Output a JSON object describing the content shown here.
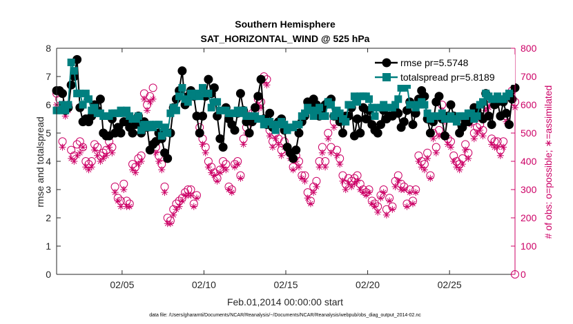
{
  "chart_data": {
    "type": "line",
    "title": "Southern Hemisphere",
    "subtitle": "SAT_HORIZONTAL_WIND @ 525 hPa",
    "xlabel": "Feb.01,2014 00:00:00 start",
    "ylabel_left": "rmse and totalspread",
    "ylabel_right": "# of obs: o=possible; ∗=assimilated",
    "footnote": "data file: /Users/gharamti/Documents/NCAR/Reanalysis/~/Documents/NCAR/Reanalysis/webpub/obs_diag_output_2014-02.nc",
    "xlim": [
      1,
      29
    ],
    "ylim_left": [
      0,
      8
    ],
    "ylim_right": [
      0,
      800
    ],
    "x_ticks": [
      5,
      10,
      15,
      20,
      25
    ],
    "x_tick_labels": [
      "02/05",
      "02/10",
      "02/15",
      "02/20",
      "02/25"
    ],
    "y_ticks_left": [
      0,
      1,
      2,
      3,
      4,
      5,
      6,
      7,
      8
    ],
    "y_ticks_right": [
      0,
      100,
      200,
      300,
      400,
      500,
      600,
      700,
      800
    ],
    "grid": false,
    "legend_position": "top-right",
    "colors": {
      "rmse": "#000000",
      "totalspread": "#007f7f",
      "obs": "#cc0066",
      "axis": "#262626"
    },
    "series": [
      {
        "name": "rmse pr=5.5748",
        "axis": "left",
        "marker": "filled-circle",
        "values": [
          6.5,
          6.5,
          6.4,
          5.8,
          5.9,
          6.7,
          7.0,
          7.6,
          5.9,
          5.4,
          5.5,
          5.4,
          5.6,
          6.0,
          5.8,
          6.2,
          5.0,
          4.9,
          4.9,
          5.5,
          5.0,
          5.2,
          5.0,
          5.4,
          5.4,
          5.2,
          5.0,
          5.3,
          5.6,
          5.0,
          5.4,
          5.2,
          4.4,
          4.6,
          4.7,
          5.0,
          4.8,
          4.3,
          4.1,
          5.0,
          5.9,
          6.2,
          6.5,
          7.2,
          6.0,
          6.3,
          6.5,
          6.3,
          5.6,
          5.0,
          5.6,
          6.3,
          6.9,
          6.4,
          6.6,
          5.6,
          4.8,
          4.5,
          5.9,
          5.5,
          5.3,
          5.1,
          5.7,
          6.4,
          5.8,
          5.4,
          5.0,
          5.4,
          5.9,
          6.3,
          6.9,
          5.5,
          5.3,
          5.7,
          5.2,
          5.3,
          5.4,
          5.5,
          5.1,
          4.5,
          4.3,
          4.1,
          4.4,
          5.0,
          5.4,
          5.6,
          6.1,
          5.9,
          6.2,
          6.0,
          5.6,
          5.8,
          6.0,
          6.1,
          6.2,
          5.6,
          5.7,
          5.4,
          5.0,
          5.6,
          5.6,
          5.9,
          4.9,
          5.5,
          5.0,
          5.9,
          5.5,
          5.8,
          5.3,
          5.1,
          5.0,
          5.3,
          5.8,
          5.5,
          5.6,
          5.6,
          5.8,
          5.7,
          5.2,
          5.4,
          5.8,
          6.1,
          5.3,
          5.7,
          6.2,
          6.5,
          6.3,
          5.5,
          5.0,
          5.4,
          6.1,
          6.3,
          5.5,
          4.9,
          5.6,
          6.0,
          5.6,
          5.5,
          5.0,
          5.2,
          5.4,
          5.4,
          5.6,
          5.9,
          5.8,
          5.6,
          5.5,
          6.4,
          5.6,
          5.3,
          6.0,
          6.1,
          5.6,
          6.1,
          5.7,
          5.3,
          6.2,
          6.6
        ]
      },
      {
        "name": "totalspread pr=5.8189",
        "axis": "left",
        "marker": "filled-square",
        "values": [
          5.8,
          5.8,
          6.0,
          5.8,
          6.0,
          7.5,
          7.2,
          6.4,
          6.4,
          6.0,
          6.4,
          6.2,
          5.8,
          5.9,
          5.7,
          5.7,
          5.6,
          5.6,
          5.6,
          5.7,
          5.7,
          5.7,
          5.8,
          5.7,
          5.8,
          5.6,
          5.5,
          5.5,
          5.6,
          5.1,
          5.3,
          5.2,
          5.3,
          5.2,
          5.3,
          5.3,
          4.9,
          5.2,
          5.0,
          5.7,
          5.9,
          5.8,
          6.3,
          6.6,
          6.2,
          6.1,
          6.4,
          6.3,
          6.4,
          6.3,
          6.6,
          6.4,
          6.4,
          5.9,
          6.1,
          6.1,
          5.8,
          5.8,
          5.8,
          5.7,
          5.7,
          5.7,
          5.8,
          5.7,
          5.8,
          5.6,
          5.6,
          5.6,
          5.6,
          5.5,
          5.5,
          5.3,
          5.4,
          5.4,
          5.3,
          5.1,
          5.3,
          5.4,
          5.3,
          5.1,
          5.2,
          5.2,
          5.3,
          5.3,
          5.6,
          5.7,
          5.9,
          5.8,
          5.6,
          5.8,
          5.9,
          5.6,
          5.6,
          6.1,
          6.0,
          5.6,
          5.8,
          5.7,
          5.5,
          5.4,
          6.0,
          6.0,
          6.3,
          6.1,
          6.3,
          6.3,
          6.3,
          6.2,
          5.9,
          5.6,
          5.9,
          5.9,
          6.0,
          5.9,
          5.9,
          5.9,
          6.0,
          6.2,
          6.6,
          6.6,
          6.7,
          6.0,
          6.0,
          5.9,
          6.0,
          6.1,
          6.0,
          5.7,
          5.5,
          5.6,
          5.6,
          5.6,
          5.7,
          5.5,
          5.5,
          5.6,
          5.5,
          5.4,
          5.6,
          5.6,
          5.6,
          5.7,
          5.7,
          5.5,
          5.6,
          6.0,
          6.1,
          6.4,
          6.3,
          6.2,
          6.2,
          6.3,
          6.2,
          6.2,
          6.3,
          6.4
        ]
      }
    ],
    "obs_possible": {
      "axis": "right",
      "marker": "open-circle",
      "values": [
        640,
        620,
        470,
        580,
        600,
        440,
        420,
        460,
        470,
        450,
        400,
        390,
        400,
        460,
        450,
        420,
        430,
        440,
        470,
        450,
        310,
        270,
        260,
        320,
        260,
        250,
        390,
        380,
        410,
        420,
        640,
        600,
        630,
        660,
        450,
        420,
        390,
        310,
        200,
        190,
        230,
        250,
        260,
        270,
        290,
        300,
        300,
        250,
        280,
        520,
        480,
        450,
        400,
        380,
        360,
        340,
        370,
        400,
        390,
        310,
        300,
        390,
        400,
        350,
        480,
        520,
        560,
        570,
        580,
        620,
        610,
        700,
        690,
        510,
        470,
        500,
        480,
        440,
        470,
        450,
        430,
        380,
        420,
        400,
        350,
        350,
        290,
        260,
        310,
        330,
        400,
        450,
        400,
        500,
        450,
        540,
        440,
        410,
        350,
        320,
        340,
        330,
        340,
        350,
        320,
        300,
        290,
        300,
        260,
        250,
        240,
        280,
        300,
        230,
        270,
        240,
        330,
        350,
        320,
        310,
        250,
        300,
        260,
        300,
        420,
        400,
        390,
        430,
        350,
        500,
        450,
        510,
        600,
        560,
        480,
        470,
        420,
        400,
        390,
        410,
        460,
        430,
        550,
        500,
        520,
        530,
        510,
        600,
        610,
        480,
        470,
        470,
        440,
        470,
        560,
        760,
        650,
        610
      ]
    },
    "obs_assimilated": {
      "axis": "right",
      "marker": "asterisk",
      "values": [
        600,
        590,
        450,
        560,
        580,
        410,
        400,
        420,
        430,
        450,
        380,
        370,
        380,
        440,
        420,
        400,
        410,
        420,
        450,
        430,
        290,
        260,
        240,
        300,
        240,
        240,
        370,
        360,
        390,
        400,
        620,
        580,
        610,
        620,
        430,
        400,
        370,
        290,
        180,
        180,
        210,
        230,
        240,
        260,
        280,
        280,
        280,
        240,
        270,
        500,
        460,
        430,
        380,
        360,
        350,
        330,
        360,
        380,
        370,
        300,
        290,
        380,
        390,
        340,
        460,
        500,
        540,
        550,
        560,
        600,
        590,
        680,
        670,
        490,
        450,
        480,
        460,
        420,
        450,
        430,
        410,
        370,
        400,
        380,
        340,
        330,
        270,
        250,
        290,
        310,
        380,
        430,
        380,
        480,
        430,
        520,
        420,
        390,
        330,
        300,
        320,
        310,
        320,
        330,
        300,
        290,
        280,
        290,
        250,
        240,
        220,
        270,
        290,
        210,
        260,
        230,
        310,
        330,
        300,
        300,
        240,
        290,
        250,
        290,
        400,
        380,
        370,
        410,
        340,
        480,
        430,
        490,
        580,
        540,
        460,
        450,
        400,
        380,
        370,
        390,
        440,
        410,
        530,
        480,
        500,
        510,
        490,
        580,
        590,
        460,
        450,
        450,
        420,
        450,
        540,
        740,
        630,
        590
      ]
    }
  }
}
